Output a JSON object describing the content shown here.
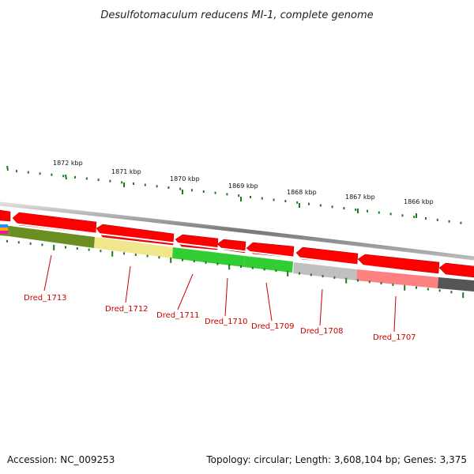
{
  "title": "Desulfotomaculum reducens MI-1, complete genome",
  "accession": "Accession: NC_009253",
  "topology": "Topology: circular; Length: 3,608,104 bp; Genes: 3,375",
  "colors": {
    "backbone": "#8a8a8a",
    "cds_arrow": "#ff0000",
    "label": "#cc0000",
    "tick": "#1f7a1f"
  },
  "scale_labels": [
    "1872 kbp",
    "1871 kbp",
    "1870 kbp",
    "1869 kbp",
    "1868 kbp",
    "1867 kbp",
    "1866 kbp"
  ],
  "genes": [
    {
      "label": "Dred_1713",
      "color": "#6b8e23"
    },
    {
      "label": "Dred_1712",
      "color": "#f0e68c"
    },
    {
      "label": "Dred_1711",
      "color": "#32cd32"
    },
    {
      "label": "Dred_1710",
      "color": "#32cd32"
    },
    {
      "label": "Dred_1709",
      "color": "#32cd32"
    },
    {
      "label": "Dred_1708",
      "color": "#c0c0c0"
    },
    {
      "label": "Dred_1707",
      "color": "#ff8080"
    }
  ]
}
